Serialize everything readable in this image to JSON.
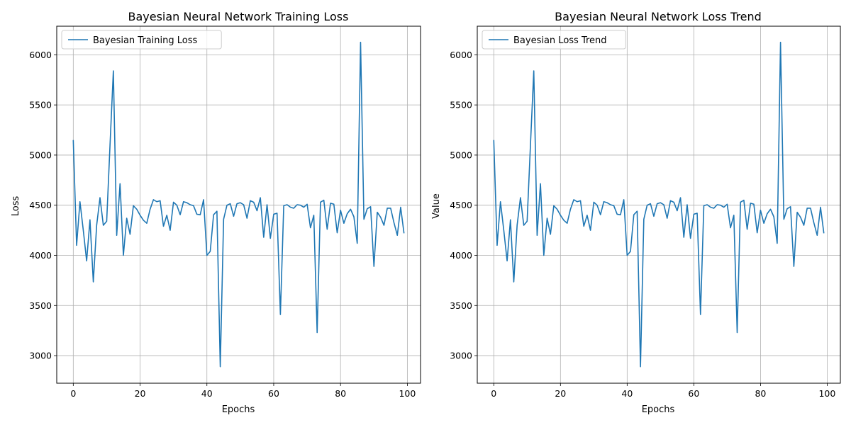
{
  "chart_data": [
    {
      "type": "line",
      "title": "Bayesian Neural Network Training Loss",
      "xlabel": "Epochs",
      "ylabel": "Loss",
      "xlim": [
        -4.95,
        103.95
      ],
      "ylim": [
        2725,
        6285
      ],
      "xticks": [
        0,
        20,
        40,
        60,
        80,
        100
      ],
      "yticks": [
        3000,
        3500,
        4000,
        4500,
        5000,
        5500,
        6000
      ],
      "grid": true,
      "legend": "top-left",
      "color": "#1f77b4",
      "series": [
        {
          "name": "Bayesian Training Loss",
          "x": [
            0,
            1,
            2,
            3,
            4,
            5,
            6,
            7,
            8,
            9,
            10,
            11,
            12,
            13,
            14,
            15,
            16,
            17,
            18,
            19,
            20,
            21,
            22,
            23,
            24,
            25,
            26,
            27,
            28,
            29,
            30,
            31,
            32,
            33,
            34,
            35,
            36,
            37,
            38,
            39,
            40,
            41,
            42,
            43,
            44,
            45,
            46,
            47,
            48,
            49,
            50,
            51,
            52,
            53,
            54,
            55,
            56,
            57,
            58,
            59,
            60,
            61,
            62,
            63,
            64,
            65,
            66,
            67,
            68,
            69,
            70,
            71,
            72,
            73,
            74,
            75,
            76,
            77,
            78,
            79,
            80,
            81,
            82,
            83,
            84,
            85,
            86,
            87,
            88,
            89,
            90,
            91,
            92,
            93,
            94,
            95,
            96,
            97,
            98,
            99
          ],
          "values": [
            5150,
            4100,
            4535,
            4250,
            3945,
            4355,
            3735,
            4300,
            4575,
            4300,
            4340,
            5100,
            5840,
            4200,
            4715,
            4000,
            4370,
            4210,
            4495,
            4460,
            4400,
            4350,
            4320,
            4460,
            4555,
            4535,
            4545,
            4290,
            4400,
            4250,
            4530,
            4500,
            4405,
            4535,
            4525,
            4505,
            4495,
            4410,
            4405,
            4555,
            4000,
            4040,
            4405,
            4440,
            2890,
            4360,
            4500,
            4515,
            4390,
            4515,
            4525,
            4505,
            4370,
            4545,
            4530,
            4445,
            4575,
            4180,
            4505,
            4170,
            4410,
            4420,
            3410,
            4495,
            4505,
            4480,
            4470,
            4505,
            4500,
            4480,
            4510,
            4275,
            4400,
            3230,
            4530,
            4550,
            4260,
            4520,
            4510,
            4225,
            4450,
            4320,
            4415,
            4460,
            4385,
            4120,
            6125,
            4360,
            4465,
            4485,
            3890,
            4430,
            4380,
            4300,
            4470,
            4470,
            4325,
            4200,
            4480,
            4220
          ]
        }
      ]
    },
    {
      "type": "line",
      "title": "Bayesian Neural Network Loss Trend",
      "xlabel": "Epochs",
      "ylabel": "Value",
      "xlim": [
        -4.95,
        103.95
      ],
      "ylim": [
        2725,
        6285
      ],
      "xticks": [
        0,
        20,
        40,
        60,
        80,
        100
      ],
      "yticks": [
        3000,
        3500,
        4000,
        4500,
        5000,
        5500,
        6000
      ],
      "grid": true,
      "legend": "top-left",
      "color": "#1f77b4",
      "series": [
        {
          "name": "Bayesian Loss Trend",
          "x": [
            0,
            1,
            2,
            3,
            4,
            5,
            6,
            7,
            8,
            9,
            10,
            11,
            12,
            13,
            14,
            15,
            16,
            17,
            18,
            19,
            20,
            21,
            22,
            23,
            24,
            25,
            26,
            27,
            28,
            29,
            30,
            31,
            32,
            33,
            34,
            35,
            36,
            37,
            38,
            39,
            40,
            41,
            42,
            43,
            44,
            45,
            46,
            47,
            48,
            49,
            50,
            51,
            52,
            53,
            54,
            55,
            56,
            57,
            58,
            59,
            60,
            61,
            62,
            63,
            64,
            65,
            66,
            67,
            68,
            69,
            70,
            71,
            72,
            73,
            74,
            75,
            76,
            77,
            78,
            79,
            80,
            81,
            82,
            83,
            84,
            85,
            86,
            87,
            88,
            89,
            90,
            91,
            92,
            93,
            94,
            95,
            96,
            97,
            98,
            99
          ],
          "values": [
            5150,
            4100,
            4535,
            4250,
            3945,
            4355,
            3735,
            4300,
            4575,
            4300,
            4340,
            5100,
            5840,
            4200,
            4715,
            4000,
            4370,
            4210,
            4495,
            4460,
            4400,
            4350,
            4320,
            4460,
            4555,
            4535,
            4545,
            4290,
            4400,
            4250,
            4530,
            4500,
            4405,
            4535,
            4525,
            4505,
            4495,
            4410,
            4405,
            4555,
            4000,
            4040,
            4405,
            4440,
            2890,
            4360,
            4500,
            4515,
            4390,
            4515,
            4525,
            4505,
            4370,
            4545,
            4530,
            4445,
            4575,
            4180,
            4505,
            4170,
            4410,
            4420,
            3410,
            4495,
            4505,
            4480,
            4470,
            4505,
            4500,
            4480,
            4510,
            4275,
            4400,
            3230,
            4530,
            4550,
            4260,
            4520,
            4510,
            4225,
            4450,
            4320,
            4415,
            4460,
            4385,
            4120,
            6125,
            4360,
            4465,
            4485,
            3890,
            4430,
            4380,
            4300,
            4470,
            4470,
            4325,
            4200,
            4480,
            4220
          ]
        }
      ]
    }
  ]
}
